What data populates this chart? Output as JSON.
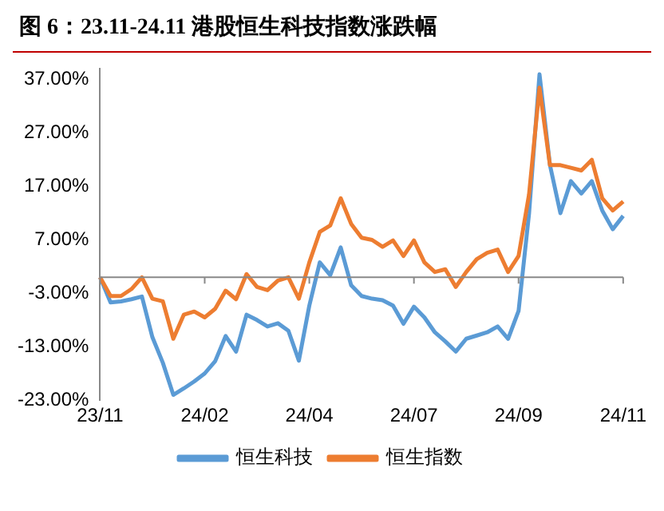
{
  "chart_data": {
    "type": "line",
    "title": "图 6：23.11-24.11 港股恒生科技指数涨跌幅",
    "categories": [
      "23/11",
      null,
      null,
      null,
      null,
      null,
      null,
      null,
      null,
      null,
      "24/02",
      null,
      null,
      null,
      null,
      null,
      null,
      null,
      null,
      null,
      "24/04",
      null,
      null,
      null,
      null,
      null,
      null,
      null,
      null,
      null,
      "24/07",
      null,
      null,
      null,
      null,
      null,
      null,
      null,
      null,
      null,
      "24/09",
      null,
      null,
      null,
      null,
      null,
      null,
      null,
      null,
      null,
      "24/11"
    ],
    "ylim": [
      -23,
      39
    ],
    "yticks": [
      {
        "value": -23,
        "label": "-23.00%"
      },
      {
        "value": -13,
        "label": "-13.00%"
      },
      {
        "value": -3,
        "label": "-3.00%"
      },
      {
        "value": 7,
        "label": "7.00%"
      },
      {
        "value": 17,
        "label": "17.00%"
      },
      {
        "value": 27,
        "label": "27.00%"
      },
      {
        "value": 37,
        "label": "37.00%"
      }
    ],
    "grid": false,
    "legend": "bottom",
    "marker": "none",
    "line_style": "solid",
    "series": [
      {
        "name": "恒生科技",
        "color": "#5b9bd5",
        "values": [
          0,
          -4.7,
          -4.5,
          -4.1,
          -3.6,
          -11.2,
          -16,
          -22,
          -20.8,
          -19.5,
          -18,
          -15.7,
          -11,
          -13.9,
          -7,
          -8,
          -9.2,
          -8.6,
          -10,
          -15.6,
          -5.3,
          2.8,
          0.4,
          5.6,
          -1.5,
          -3.5,
          -4,
          -4.3,
          -5.3,
          -8.7,
          -5.5,
          -7.5,
          -10.3,
          -12,
          -13.9,
          -11.5,
          -10.9,
          -10.3,
          -9.2,
          -11.5,
          -6.3,
          11.9,
          38,
          21,
          12,
          18,
          15.7,
          18,
          12.5,
          9,
          11.5
        ]
      },
      {
        "name": "恒生指数",
        "color": "#ed7d31",
        "values": [
          0,
          -3.5,
          -3.5,
          -2.2,
          0,
          -4,
          -4.5,
          -11.5,
          -7,
          -6.4,
          -7.5,
          -5.9,
          -2.5,
          -4.1,
          0.6,
          -1.8,
          -2.4,
          -0.6,
          0,
          -4,
          2.8,
          8.5,
          9.7,
          14.8,
          10,
          7.4,
          7,
          5.7,
          6.9,
          4,
          6.9,
          2.8,
          1,
          1.5,
          -1.8,
          1,
          3.4,
          4.6,
          5.2,
          1,
          4,
          15.5,
          35.5,
          21,
          21,
          20.5,
          20,
          22,
          14.8,
          12.5,
          14.2
        ]
      }
    ]
  }
}
